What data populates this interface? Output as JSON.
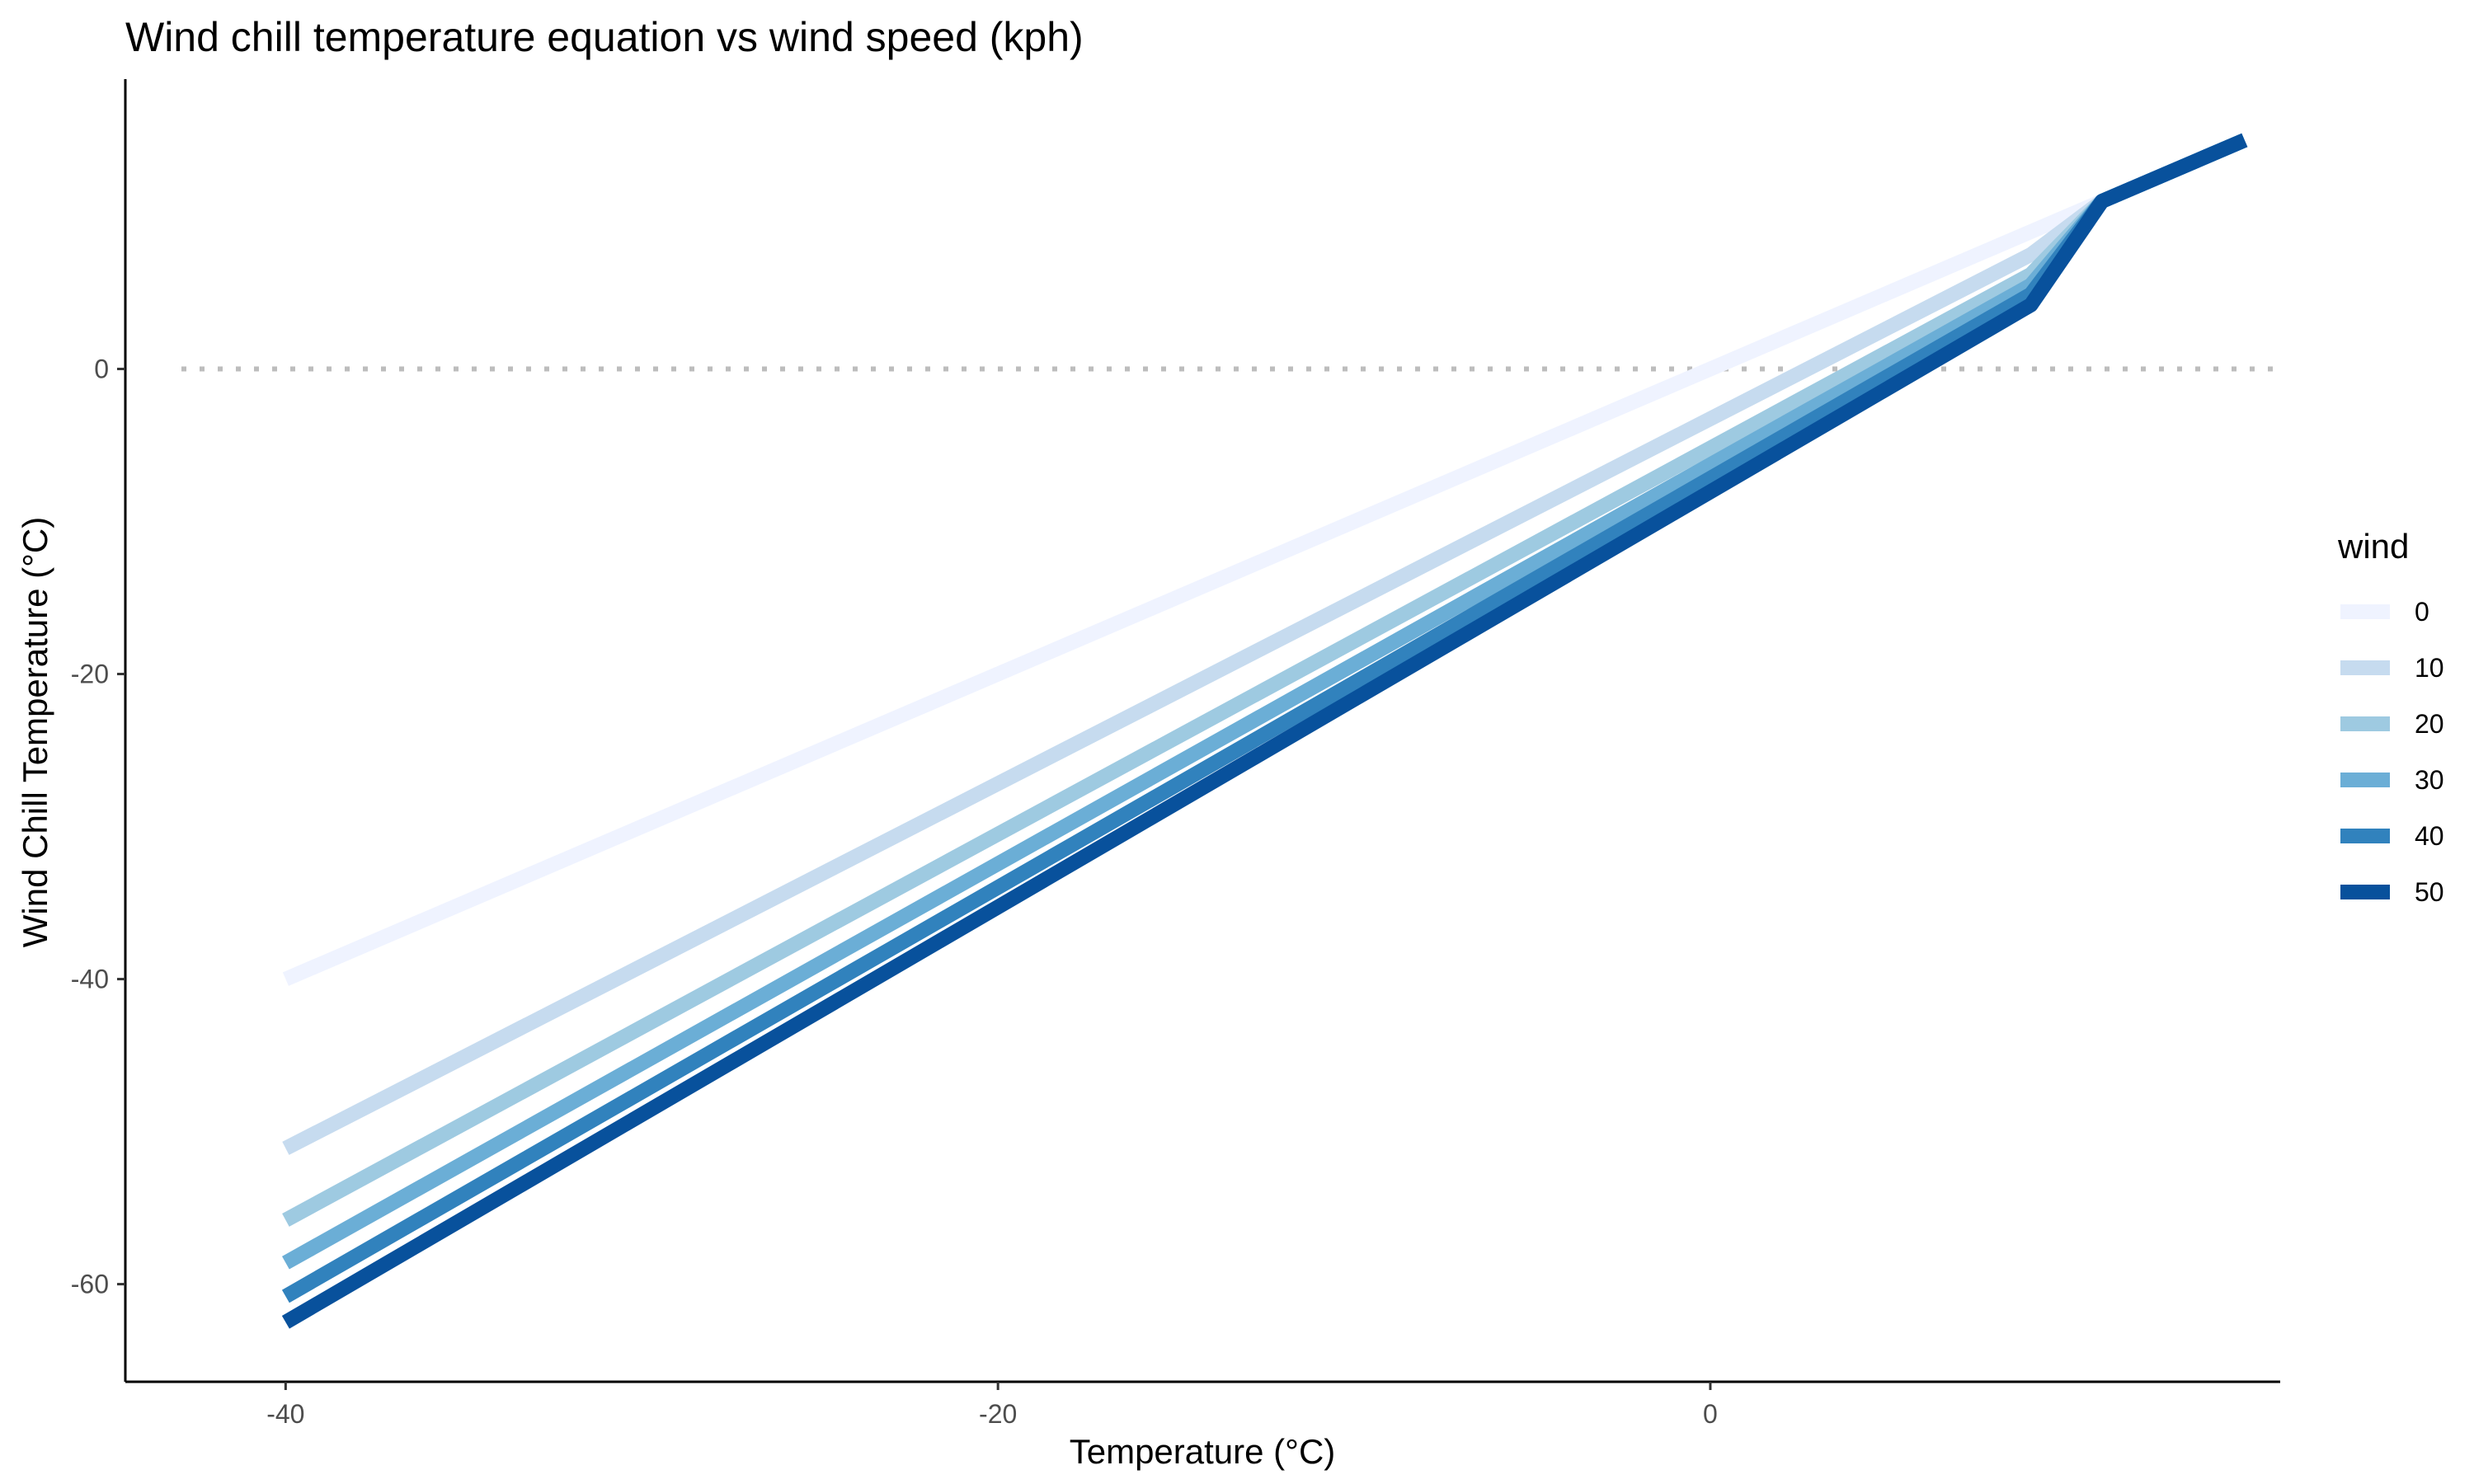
{
  "chart_data": {
    "type": "line",
    "title": "Wind chill temperature equation vs wind speed (kph)",
    "xlabel": "Temperature (°C)",
    "ylabel": "Wind Chill Temperature (°C)",
    "xlim": [
      -44.5,
      16
    ],
    "ylim": [
      -66.4,
      19
    ],
    "xticks": [
      -40,
      -20,
      0
    ],
    "yticks": [
      -60,
      -40,
      -20,
      0
    ],
    "x_tick_labels": [
      "-40",
      "-20",
      "0"
    ],
    "y_tick_labels": [
      "-60",
      "-40",
      "-20",
      "0"
    ],
    "grid": false,
    "reference_line": {
      "y": 0,
      "style": "dotted",
      "color": "#bdbdbd"
    },
    "legend": {
      "title": "wind",
      "position": "right"
    },
    "series": [
      {
        "name": "0",
        "color": "#eff3ff",
        "x": [
          -40,
          9,
          11,
          15
        ],
        "y": [
          -40,
          9,
          11,
          15
        ]
      },
      {
        "name": "10",
        "color": "#c6dbef",
        "x": [
          -40,
          9,
          11,
          15
        ],
        "y": [
          -51.1,
          7.5,
          11,
          15
        ]
      },
      {
        "name": "20",
        "color": "#9ecae1",
        "x": [
          -40,
          9,
          11,
          15
        ],
        "y": [
          -55.8,
          6.2,
          11,
          15
        ]
      },
      {
        "name": "30",
        "color": "#6baed6",
        "x": [
          -40,
          9,
          11,
          15
        ],
        "y": [
          -58.6,
          5.5,
          11,
          15
        ]
      },
      {
        "name": "40",
        "color": "#3182bd",
        "x": [
          -40,
          9,
          11,
          15
        ],
        "y": [
          -60.8,
          4.9,
          11,
          15
        ]
      },
      {
        "name": "50",
        "color": "#08519c",
        "x": [
          -40,
          9,
          11,
          15
        ],
        "y": [
          -62.5,
          4.2,
          11,
          15
        ]
      }
    ]
  }
}
